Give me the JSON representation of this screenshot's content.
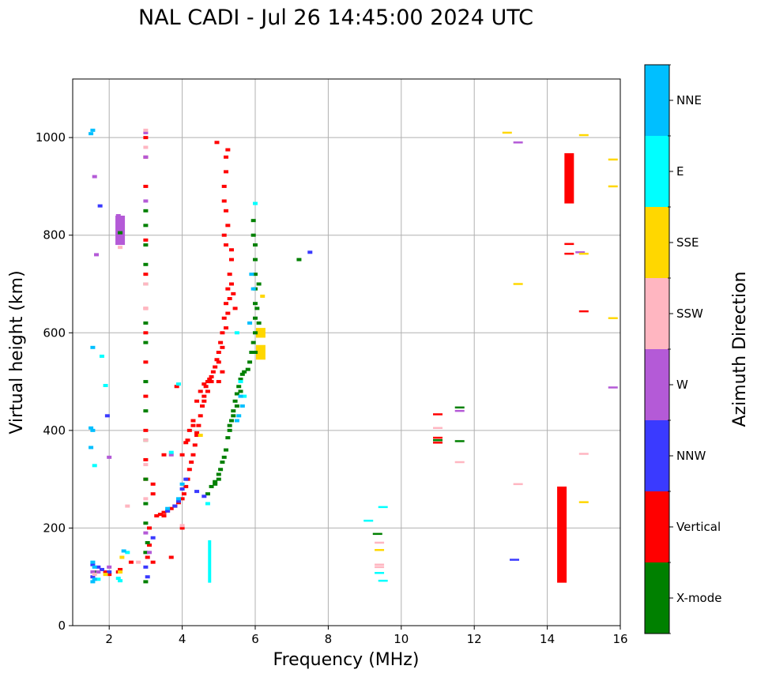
{
  "chart_data": {
    "type": "scatter",
    "title": "NAL CADI - Jul 26 14:45:00 2024 UTC",
    "xlabel": "Frequency (MHz)",
    "ylabel": "Virtual height (km)",
    "xlim": [
      1,
      16
    ],
    "ylim": [
      0,
      1120
    ],
    "xticks": [
      2,
      4,
      6,
      8,
      10,
      12,
      14,
      16
    ],
    "yticks": [
      0,
      200,
      400,
      600,
      800,
      1000
    ],
    "xtick_labels": [
      "2",
      "4",
      "6",
      "8",
      "10",
      "12",
      "14",
      "16"
    ],
    "ytick_labels": [
      "0",
      "200",
      "400",
      "600",
      "800",
      "1000"
    ],
    "grid": true,
    "colorbar": {
      "label": "Azimuth Direction",
      "categories": [
        {
          "name": "X-mode",
          "color": "#008000"
        },
        {
          "name": "Vertical",
          "color": "#ff0000"
        },
        {
          "name": "NNW",
          "color": "#3a3aff"
        },
        {
          "name": "W",
          "color": "#b45ad7"
        },
        {
          "name": "SSW",
          "color": "#ffb6c1"
        },
        {
          "name": "SSE",
          "color": "#ffd700"
        },
        {
          "name": "E",
          "color": "#00ffff"
        },
        {
          "name": "NNE",
          "color": "#00bfff"
        }
      ]
    },
    "bars": [
      {
        "direction": "Vertical",
        "f": 14.6,
        "h0": 865,
        "h1": 968
      },
      {
        "direction": "Vertical",
        "f": 14.4,
        "h0": 88,
        "h1": 285
      },
      {
        "direction": "E",
        "f": 4.75,
        "h0": 88,
        "h1": 175
      },
      {
        "direction": "W",
        "f": 2.3,
        "h0": 780,
        "h1": 840
      },
      {
        "direction": "SSE",
        "f": 6.15,
        "h0": 545,
        "h1": 575
      },
      {
        "direction": "SSE",
        "f": 6.15,
        "h0": 590,
        "h1": 610
      }
    ],
    "series": [
      {
        "name": "Vertical",
        "points": [
          [
            3.3,
            225
          ],
          [
            3.4,
            228
          ],
          [
            3.5,
            232
          ],
          [
            3.6,
            235
          ],
          [
            3.7,
            240
          ],
          [
            3.8,
            245
          ],
          [
            3.9,
            252
          ],
          [
            4.0,
            260
          ],
          [
            4.05,
            270
          ],
          [
            4.1,
            285
          ],
          [
            4.15,
            300
          ],
          [
            4.2,
            320
          ],
          [
            4.25,
            335
          ],
          [
            4.3,
            350
          ],
          [
            4.35,
            370
          ],
          [
            4.4,
            390
          ],
          [
            4.45,
            410
          ],
          [
            4.5,
            430
          ],
          [
            4.55,
            450
          ],
          [
            4.6,
            470
          ],
          [
            4.65,
            490
          ],
          [
            4.7,
            500
          ],
          [
            4.75,
            505
          ],
          [
            4.8,
            510
          ],
          [
            4.85,
            520
          ],
          [
            4.9,
            530
          ],
          [
            4.95,
            545
          ],
          [
            5.0,
            560
          ],
          [
            5.05,
            580
          ],
          [
            5.1,
            600
          ],
          [
            5.15,
            630
          ],
          [
            5.2,
            660
          ],
          [
            5.25,
            690
          ],
          [
            5.3,
            720
          ],
          [
            5.35,
            750
          ],
          [
            4.5,
            480
          ],
          [
            4.6,
            495
          ],
          [
            4.4,
            460
          ],
          [
            4.3,
            420
          ],
          [
            5.0,
            540
          ],
          [
            5.1,
            570
          ],
          [
            5.2,
            610
          ],
          [
            5.25,
            640
          ],
          [
            5.3,
            670
          ],
          [
            5.35,
            700
          ],
          [
            5.4,
            680
          ],
          [
            5.45,
            650
          ],
          [
            5.2,
            780
          ],
          [
            5.15,
            800
          ],
          [
            5.25,
            820
          ],
          [
            5.2,
            850
          ],
          [
            5.15,
            900
          ],
          [
            5.2,
            930
          ],
          [
            5.2,
            960
          ],
          [
            5.25,
            975
          ],
          [
            4.95,
            990
          ],
          [
            5.15,
            870
          ],
          [
            5.35,
            770
          ],
          [
            4.0,
            350
          ],
          [
            4.1,
            375
          ],
          [
            4.2,
            400
          ],
          [
            3.5,
            225
          ],
          [
            3.1,
            165
          ],
          [
            3.1,
            200
          ],
          [
            3.05,
            140
          ],
          [
            3.2,
            130
          ],
          [
            3.2,
            270
          ],
          [
            3.2,
            290
          ],
          [
            3.5,
            350
          ],
          [
            3.85,
            490
          ],
          [
            2.25,
            110
          ],
          [
            2.3,
            115
          ],
          [
            1.9,
            110
          ],
          [
            2.0,
            105
          ],
          [
            4.15,
            380
          ],
          [
            4.3,
            410
          ],
          [
            4.6,
            460
          ],
          [
            4.7,
            480
          ],
          [
            4.8,
            500
          ],
          [
            3.7,
            140
          ],
          [
            2.6,
            130
          ],
          [
            3.0,
            300
          ],
          [
            3.0,
            340
          ],
          [
            3.0,
            400
          ],
          [
            3.0,
            470
          ],
          [
            3.0,
            540
          ],
          [
            3.0,
            600
          ],
          [
            3.0,
            650
          ],
          [
            3.0,
            720
          ],
          [
            3.0,
            790
          ],
          [
            3.0,
            900
          ],
          [
            3.0,
            960
          ],
          [
            3.0,
            1000
          ],
          [
            11.0,
            433
          ],
          [
            11.0,
            385
          ],
          [
            11.0,
            375
          ],
          [
            14.6,
            782
          ],
          [
            14.6,
            762
          ],
          [
            15.0,
            644
          ],
          [
            4.0,
            200
          ],
          [
            4.4,
            395
          ],
          [
            5.1,
            520
          ],
          [
            5.0,
            500
          ]
        ]
      },
      {
        "name": "X-mode",
        "points": [
          [
            4.7,
            270
          ],
          [
            4.8,
            285
          ],
          [
            4.9,
            295
          ],
          [
            5.0,
            310
          ],
          [
            5.05,
            320
          ],
          [
            5.1,
            335
          ],
          [
            5.2,
            360
          ],
          [
            5.25,
            385
          ],
          [
            5.3,
            400
          ],
          [
            5.35,
            420
          ],
          [
            5.4,
            440
          ],
          [
            5.45,
            460
          ],
          [
            5.5,
            475
          ],
          [
            5.55,
            490
          ],
          [
            5.6,
            505
          ],
          [
            5.65,
            515
          ],
          [
            5.7,
            520
          ],
          [
            5.8,
            525
          ],
          [
            5.85,
            540
          ],
          [
            5.9,
            560
          ],
          [
            5.95,
            580
          ],
          [
            6.0,
            600
          ],
          [
            6.0,
            630
          ],
          [
            6.0,
            660
          ],
          [
            6.0,
            690
          ],
          [
            6.0,
            720
          ],
          [
            6.0,
            750
          ],
          [
            6.0,
            780
          ],
          [
            5.95,
            800
          ],
          [
            5.95,
            830
          ],
          [
            5.6,
            480
          ],
          [
            5.5,
            450
          ],
          [
            5.4,
            430
          ],
          [
            5.3,
            410
          ],
          [
            5.15,
            345
          ],
          [
            5.0,
            300
          ],
          [
            4.9,
            290
          ],
          [
            6.1,
            700
          ],
          [
            6.05,
            650
          ],
          [
            6.1,
            620
          ],
          [
            6.0,
            560
          ],
          [
            3.0,
            850
          ],
          [
            3.0,
            820
          ],
          [
            3.0,
            780
          ],
          [
            3.0,
            740
          ],
          [
            3.0,
            700
          ],
          [
            3.0,
            620
          ],
          [
            3.0,
            580
          ],
          [
            3.0,
            500
          ],
          [
            3.0,
            440
          ],
          [
            3.0,
            380
          ],
          [
            3.0,
            300
          ],
          [
            3.0,
            250
          ],
          [
            3.0,
            210
          ],
          [
            3.0,
            150
          ],
          [
            3.0,
            90
          ],
          [
            2.3,
            805
          ],
          [
            7.2,
            750
          ],
          [
            11.6,
            447
          ],
          [
            11.6,
            378
          ],
          [
            11.0,
            380
          ],
          [
            9.35,
            188
          ],
          [
            1.6,
            110
          ],
          [
            3.05,
            170
          ]
        ]
      },
      {
        "name": "NNW",
        "points": [
          [
            4.4,
            275
          ],
          [
            4.6,
            265
          ],
          [
            3.6,
            235
          ],
          [
            3.8,
            245
          ],
          [
            4.0,
            280
          ],
          [
            4.1,
            300
          ],
          [
            3.9,
            255
          ],
          [
            1.55,
            100
          ],
          [
            1.7,
            120
          ],
          [
            1.8,
            115
          ],
          [
            1.55,
            125
          ],
          [
            2.0,
            110
          ],
          [
            1.95,
            430
          ],
          [
            1.75,
            860
          ],
          [
            7.5,
            765
          ],
          [
            13.1,
            135
          ],
          [
            3.0,
            120
          ],
          [
            3.2,
            180
          ],
          [
            3.05,
            100
          ]
        ]
      },
      {
        "name": "W",
        "points": [
          [
            1.6,
            920
          ],
          [
            1.65,
            760
          ],
          [
            2.25,
            840
          ],
          [
            1.7,
            110
          ],
          [
            1.55,
            110
          ],
          [
            2.0,
            345
          ],
          [
            3.0,
            1010
          ],
          [
            3.0,
            960
          ],
          [
            3.0,
            870
          ],
          [
            11.6,
            440
          ],
          [
            13.2,
            990
          ],
          [
            14.9,
            765
          ],
          [
            15.8,
            488
          ],
          [
            3.0,
            190
          ],
          [
            3.1,
            150
          ],
          [
            3.7,
            350
          ],
          [
            2.0,
            120
          ]
        ]
      },
      {
        "name": "SSW",
        "points": [
          [
            3.0,
            1015
          ],
          [
            3.0,
            980
          ],
          [
            3.0,
            700
          ],
          [
            3.0,
            650
          ],
          [
            3.0,
            380
          ],
          [
            3.0,
            330
          ],
          [
            2.3,
            775
          ],
          [
            2.8,
            130
          ],
          [
            3.0,
            260
          ],
          [
            11.0,
            405
          ],
          [
            11.6,
            335
          ],
          [
            13.2,
            290
          ],
          [
            15.0,
            352
          ],
          [
            9.4,
            170
          ],
          [
            9.4,
            125
          ],
          [
            9.4,
            120
          ],
          [
            4.0,
            205
          ],
          [
            1.6,
            105
          ],
          [
            2.5,
            245
          ]
        ]
      },
      {
        "name": "SSE",
        "points": [
          [
            12.9,
            1010
          ],
          [
            15.0,
            1005
          ],
          [
            15.8,
            955
          ],
          [
            15.8,
            900
          ],
          [
            15.0,
            762
          ],
          [
            13.2,
            700
          ],
          [
            15.8,
            630
          ],
          [
            15.0,
            253
          ],
          [
            9.4,
            155
          ],
          [
            6.2,
            675
          ],
          [
            4.5,
            390
          ],
          [
            2.3,
            110
          ],
          [
            2.35,
            140
          ],
          [
            1.9,
            105
          ]
        ]
      },
      {
        "name": "E",
        "points": [
          [
            1.8,
            552
          ],
          [
            1.9,
            492
          ],
          [
            1.6,
            328
          ],
          [
            2.3,
            92
          ],
          [
            2.25,
            97
          ],
          [
            3.9,
            495
          ],
          [
            9.1,
            215
          ],
          [
            9.5,
            243
          ],
          [
            9.5,
            92
          ],
          [
            9.4,
            108
          ],
          [
            6.0,
            865
          ],
          [
            5.5,
            600
          ],
          [
            5.6,
            500
          ],
          [
            5.7,
            470
          ],
          [
            4.7,
            250
          ],
          [
            2.5,
            150
          ],
          [
            3.7,
            355
          ],
          [
            1.7,
            95
          ]
        ]
      },
      {
        "name": "NNE",
        "points": [
          [
            1.5,
            1008
          ],
          [
            1.55,
            1015
          ],
          [
            1.55,
            570
          ],
          [
            1.5,
            405
          ],
          [
            1.55,
            400
          ],
          [
            1.5,
            365
          ],
          [
            1.6,
            120
          ],
          [
            1.55,
            130
          ],
          [
            1.6,
            95
          ],
          [
            1.55,
            90
          ],
          [
            5.6,
            470
          ],
          [
            5.65,
            450
          ],
          [
            5.55,
            430
          ],
          [
            5.5,
            420
          ],
          [
            5.9,
            720
          ],
          [
            5.95,
            690
          ],
          [
            5.85,
            620
          ],
          [
            3.9,
            260
          ],
          [
            4.0,
            290
          ],
          [
            2.4,
            153
          ],
          [
            3.6,
            240
          ]
        ]
      }
    ]
  }
}
